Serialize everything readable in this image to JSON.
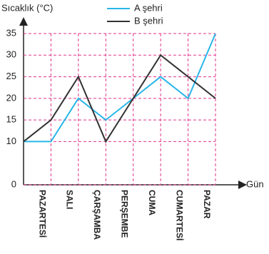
{
  "chart_data": {
    "type": "line",
    "y_label": "Sıcaklık (°C)",
    "x_label": "Gün",
    "categories": [
      null,
      "PAZARTESİ",
      "SALI",
      "ÇARŞAMBA",
      "PERŞEMBE",
      "CUMA",
      "CUMARTESİ",
      "PAZAR"
    ],
    "series": [
      {
        "name": "A şehri",
        "color": "#29b6e8",
        "values": [
          10,
          10,
          20,
          15,
          20,
          25,
          20,
          35
        ]
      },
      {
        "name": "B şehri",
        "color": "#333333",
        "values": [
          10,
          15,
          25,
          10,
          20,
          30,
          25,
          20
        ]
      }
    ],
    "ylim": [
      0,
      35
    ],
    "yticks": [
      0,
      10,
      15,
      20,
      25,
      30,
      35
    ],
    "grid": true,
    "grid_color": "#e0338a"
  }
}
